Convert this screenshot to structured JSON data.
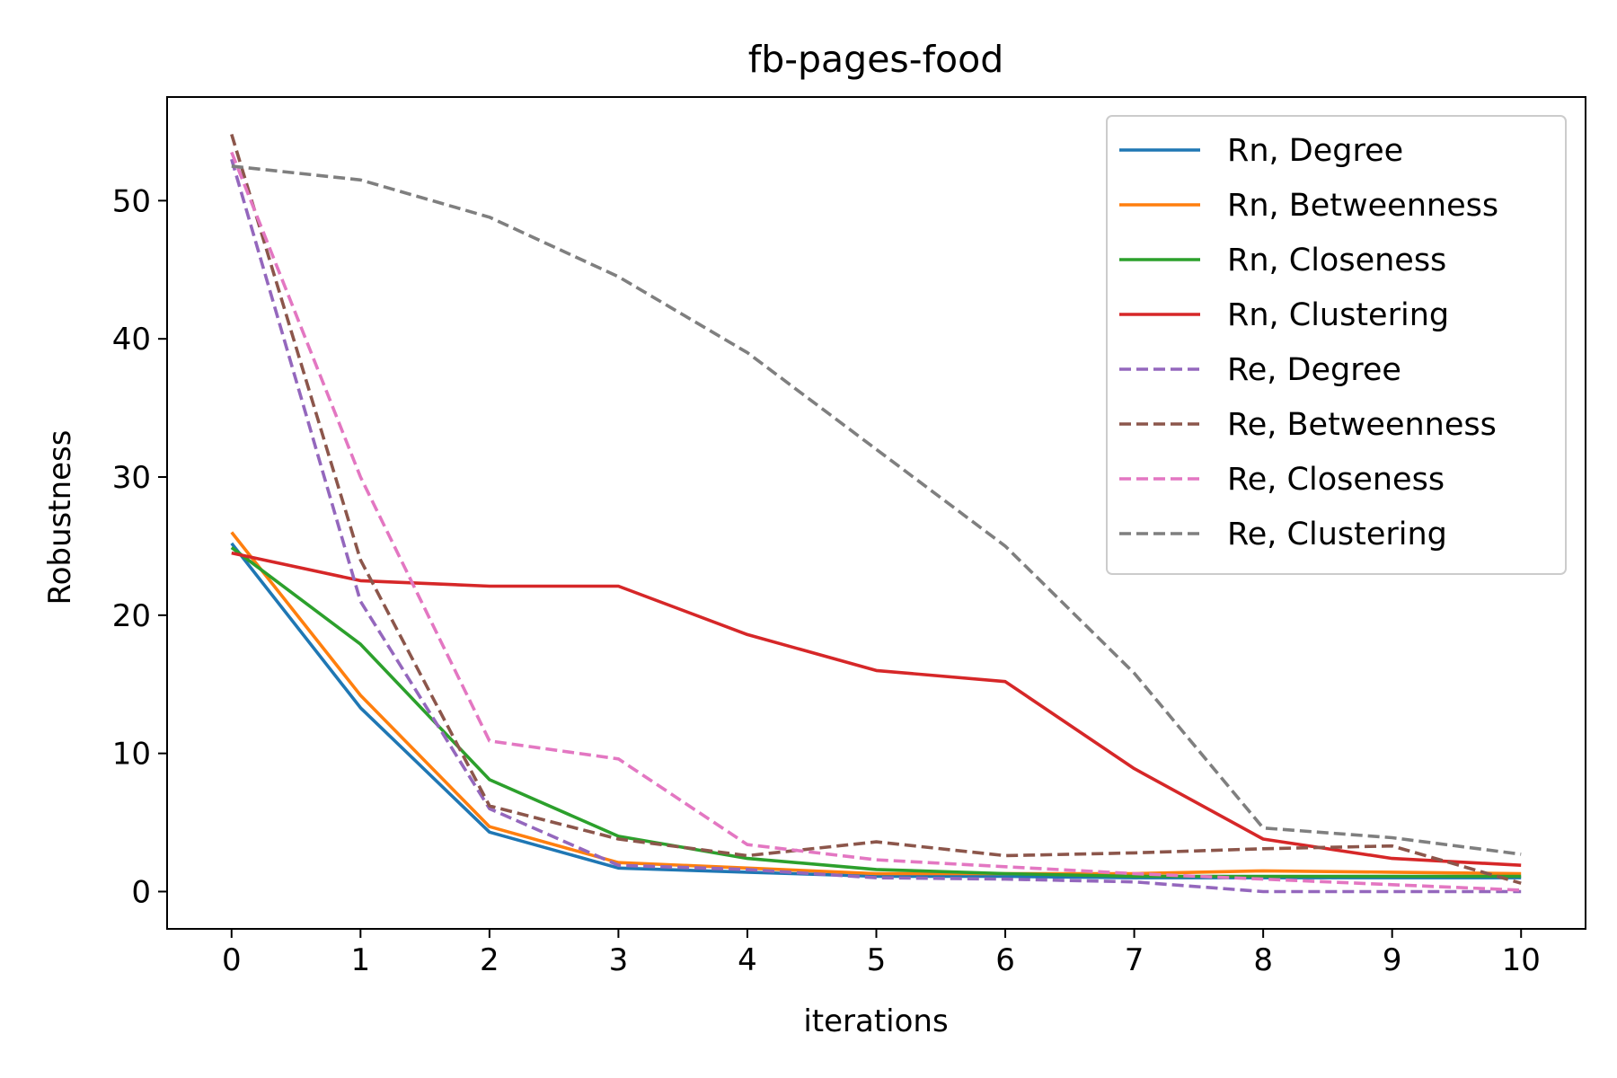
{
  "chart_data": {
    "type": "line",
    "title": "fb-pages-food",
    "xlabel": "iterations",
    "ylabel": "Robustness",
    "x": [
      0,
      1,
      2,
      3,
      4,
      5,
      6,
      7,
      8,
      9,
      10
    ],
    "xlim": [
      -0.5,
      10.5
    ],
    "ylim": [
      -2.7,
      57.5
    ],
    "xticks": [
      "0",
      "1",
      "2",
      "3",
      "4",
      "5",
      "6",
      "7",
      "8",
      "9",
      "10"
    ],
    "yticks": [
      0,
      10,
      20,
      30,
      40,
      50
    ],
    "ytick_labels": [
      "0",
      "10",
      "20",
      "30",
      "40",
      "50"
    ],
    "grid": false,
    "legend_position": "top-right",
    "series": [
      {
        "name": "Rn, Degree",
        "color": "#1f77b4",
        "style": "solid",
        "values": [
          25.2,
          13.3,
          4.3,
          1.7,
          1.4,
          1.1,
          1.1,
          1.0,
          1.0,
          1.0,
          1.0
        ]
      },
      {
        "name": "Rn, Betweenness",
        "color": "#ff7f0e",
        "style": "solid",
        "values": [
          26.0,
          14.2,
          4.7,
          2.1,
          1.7,
          1.3,
          1.3,
          1.3,
          1.5,
          1.4,
          1.3
        ]
      },
      {
        "name": "Rn, Closeness",
        "color": "#2ca02c",
        "style": "solid",
        "values": [
          24.9,
          17.9,
          8.1,
          4.0,
          2.4,
          1.6,
          1.3,
          1.1,
          1.1,
          1.1,
          1.1
        ]
      },
      {
        "name": "Rn, Clustering",
        "color": "#d62728",
        "style": "solid",
        "values": [
          24.5,
          22.5,
          22.1,
          22.1,
          18.6,
          16.0,
          15.2,
          8.9,
          3.8,
          2.4,
          1.9
        ]
      },
      {
        "name": "Re, Degree",
        "color": "#9467bd",
        "style": "dashed",
        "values": [
          53.0,
          21.0,
          6.0,
          1.9,
          1.6,
          1.0,
          0.9,
          0.7,
          0.0,
          0.0,
          0.0
        ]
      },
      {
        "name": "Re, Betweenness",
        "color": "#8c564b",
        "style": "dashed",
        "values": [
          54.8,
          24.0,
          6.2,
          3.8,
          2.6,
          3.6,
          2.6,
          2.8,
          3.1,
          3.3,
          0.6
        ]
      },
      {
        "name": "Re, Closeness",
        "color": "#e377c2",
        "style": "dashed",
        "values": [
          53.5,
          30.0,
          10.9,
          9.6,
          3.4,
          2.3,
          1.8,
          1.3,
          0.9,
          0.5,
          0.1
        ]
      },
      {
        "name": "Re, Clustering",
        "color": "#7f7f7f",
        "style": "dashed",
        "values": [
          52.5,
          51.5,
          48.8,
          44.5,
          39.0,
          32.0,
          25.0,
          15.8,
          4.6,
          3.9,
          2.7
        ]
      }
    ]
  }
}
